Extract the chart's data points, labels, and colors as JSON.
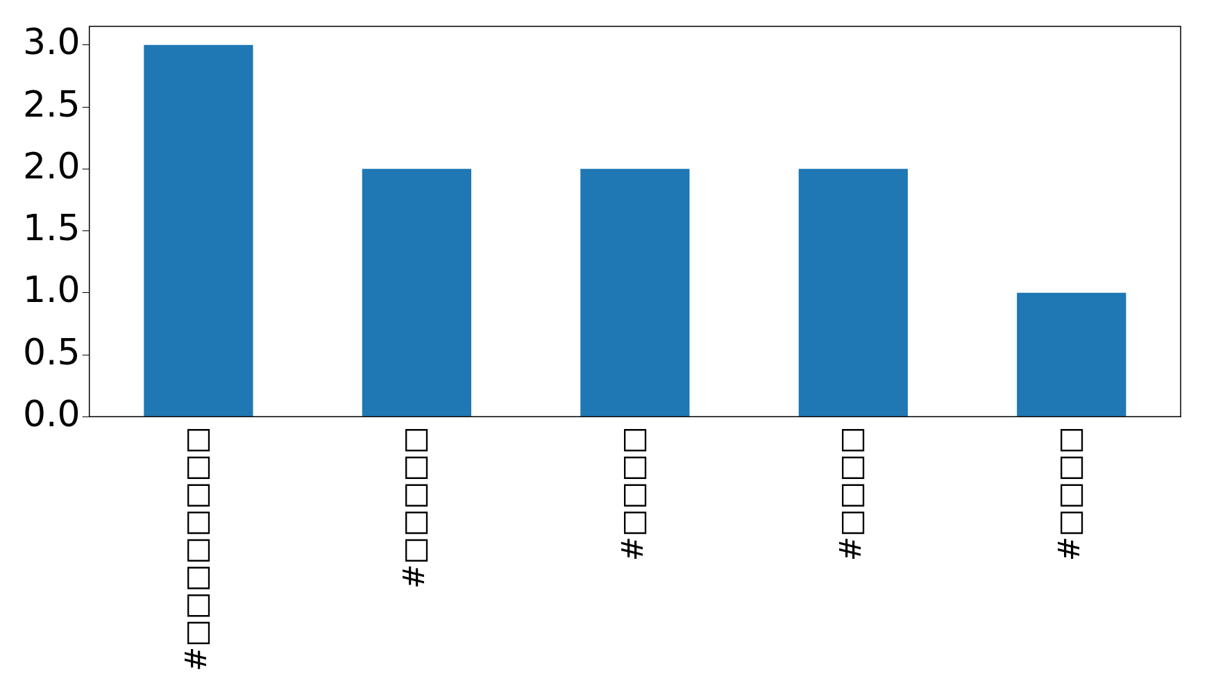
{
  "chart_data": {
    "type": "bar",
    "categories": [
      "#□□□□□□□□",
      "#□□□□□",
      "#□□□□",
      "#□□□□",
      "#□□□□"
    ],
    "values": [
      3,
      2,
      2,
      2,
      1
    ],
    "color": "#1f77b4",
    "ylim": [
      0,
      3.15
    ],
    "yticks": [
      {
        "value": 0,
        "label": "0.0"
      },
      0.5,
      {
        "value": 1,
        "label": "1.0"
      },
      1.5,
      {
        "value": 2,
        "label": "2.0"
      },
      2.5,
      {
        "value": 3,
        "label": "3.0"
      }
    ],
    "grid": false,
    "legend": false
  }
}
